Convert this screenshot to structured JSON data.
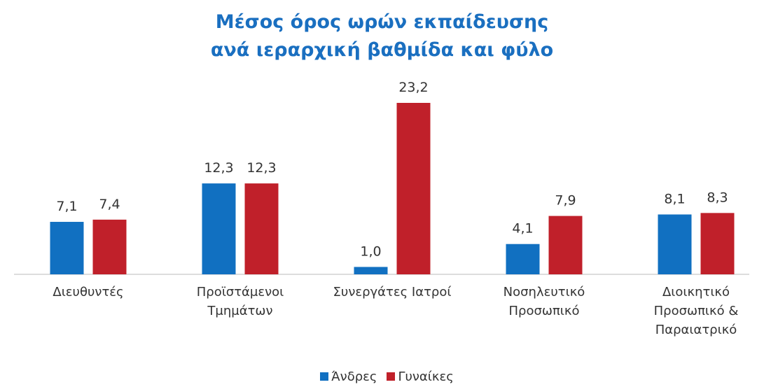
{
  "chart_data": {
    "type": "bar",
    "title": "Μέσος όρος ωρών εκπαίδευσης\nανά ιεραρχική βαθμίδα και φύλο",
    "categories": [
      "Διευθυντές",
      "Προϊστάμενοι\nΤμημάτων",
      "Συνεργάτες Ιατροί",
      "Νοσηλευτικό\nΠροσωπικό",
      "Διοικητικό\nΠροσωπικό &\nΠαραιατρικό"
    ],
    "series": [
      {
        "name": "Άνδρες",
        "color": "#1170c1",
        "values": [
          7.1,
          12.3,
          1.0,
          4.1,
          8.1
        ],
        "value_labels": [
          "7,1",
          "12,3",
          "1,0",
          "4,1",
          "8,1"
        ]
      },
      {
        "name": "Γυναίκες",
        "color": "#c0202a",
        "values": [
          7.4,
          12.3,
          23.2,
          7.9,
          8.3
        ],
        "value_labels": [
          "7,4",
          "12,3",
          "23,2",
          "7,9",
          "8,3"
        ]
      }
    ],
    "legend": "bottom"
  }
}
